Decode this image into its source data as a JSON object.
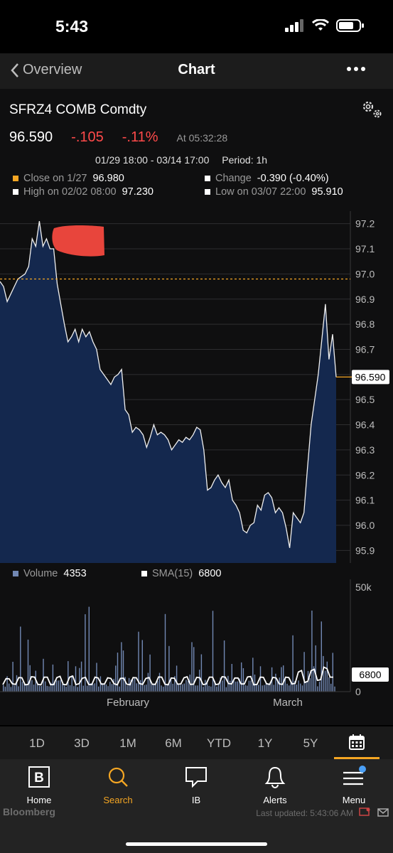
{
  "status_bar": {
    "time": "5:43"
  },
  "nav": {
    "back_label": "Overview",
    "title": "Chart"
  },
  "header": {
    "security": "SFRZ4 COMB Comdty",
    "last": "96.590",
    "change": "-.105",
    "change_pct": "-.11%",
    "as_of": "At 05:32:28",
    "date_range": "01/29 18:00 - 03/14 17:00",
    "period": "Period: 1h"
  },
  "stats": {
    "close_label": "Close on 1/27",
    "close_value": "96.980",
    "change_label": "Change",
    "change_value": "-0.390 (-0.40%)",
    "high_label": "High on 02/02 08:00",
    "high_value": "97.230",
    "low_label": "Low on 03/07 22:00",
    "low_value": "95.910",
    "close_color": "#f5a623"
  },
  "volume_legend": {
    "volume_label": "Volume",
    "volume_value": "4353",
    "sma_label": "SMA(15)",
    "sma_value": "6800"
  },
  "chart_data": [
    {
      "type": "area",
      "y_ticks": [
        "97.2",
        "97.1",
        "97.0",
        "96.9",
        "96.8",
        "96.7",
        "96.6",
        "96.5",
        "96.4",
        "96.3",
        "96.2",
        "96.1",
        "96.0",
        "95.9"
      ],
      "ylim": [
        95.85,
        97.25
      ],
      "reference_line": 96.98,
      "last_label": "96.590",
      "x": [
        0,
        5,
        10,
        15,
        20,
        25,
        30,
        35,
        40,
        45,
        50,
        55,
        60,
        65,
        70,
        75,
        80,
        85,
        90,
        95,
        100,
        105,
        110,
        115,
        120,
        125,
        130,
        135,
        140,
        145,
        150,
        155,
        160,
        165,
        170,
        175,
        180,
        185,
        190,
        195,
        200,
        205,
        210,
        215,
        220,
        225,
        230,
        235,
        240,
        245,
        250,
        255,
        260,
        265,
        270,
        275,
        280,
        285,
        290,
        295,
        300,
        305,
        310,
        315,
        320,
        325,
        330,
        335,
        340,
        345,
        350,
        355,
        360,
        365,
        370,
        375,
        380,
        385,
        390,
        395,
        400,
        405,
        410,
        415,
        420,
        425,
        430,
        435,
        440,
        445,
        450,
        455,
        460,
        465,
        470
      ],
      "values": [
        96.97,
        96.95,
        96.89,
        96.92,
        96.95,
        96.98,
        96.99,
        97.0,
        97.03,
        97.14,
        97.11,
        97.21,
        97.11,
        97.14,
        97.1,
        97.1,
        96.96,
        96.88,
        96.8,
        96.73,
        96.75,
        96.78,
        96.73,
        96.78,
        96.75,
        96.77,
        96.73,
        96.7,
        96.62,
        96.6,
        96.58,
        96.56,
        96.59,
        96.6,
        96.62,
        96.46,
        96.44,
        96.37,
        96.39,
        96.38,
        96.36,
        96.31,
        96.35,
        96.4,
        96.36,
        96.37,
        96.36,
        96.34,
        96.3,
        96.32,
        96.34,
        96.33,
        96.35,
        96.34,
        96.36,
        96.39,
        96.38,
        96.3,
        96.14,
        96.15,
        96.18,
        96.2,
        96.17,
        96.15,
        96.18,
        96.1,
        96.08,
        96.05,
        95.98,
        95.97,
        96.0,
        96.01,
        96.08,
        96.06,
        96.12,
        96.13,
        96.11,
        96.05,
        96.07,
        96.05,
        95.99,
        95.91,
        96.05,
        96.03,
        96.01,
        96.05,
        96.23,
        96.4,
        96.5,
        96.6,
        96.74,
        96.88,
        96.66,
        96.76,
        96.59
      ]
    },
    {
      "type": "bar",
      "y_ticks": [
        "50k",
        "0"
      ],
      "ylim": [
        0,
        50000
      ],
      "x_labels": [
        "February",
        "March"
      ],
      "sma_label": "6800",
      "values": [
        3100,
        2300,
        7200,
        3800,
        2200,
        14000,
        2900,
        7700,
        2500,
        30500,
        4600,
        3700,
        3300,
        24400,
        12400,
        5400,
        3300,
        9800,
        3300,
        2800,
        2700,
        15400,
        4800,
        2700,
        2500,
        4100,
        12700,
        5200,
        5200,
        5200,
        5400,
        3600,
        2900,
        2300,
        14300,
        3000,
        7700,
        2600,
        11900,
        2200,
        11100,
        14100,
        2800,
        36300,
        2800,
        39800,
        4000,
        3500,
        3900,
        13500,
        2400,
        7200,
        4000,
        3300,
        3400,
        2600,
        4600,
        3600,
        6000,
        12200,
        18300,
        2400,
        23200,
        19300,
        6900,
        2900,
        6400,
        5600,
        5600,
        6400,
        3900,
        28100,
        5400,
        24200,
        3100,
        3300,
        8800,
        17400,
        3400,
        3800,
        3300,
        5000,
        8800,
        2900,
        2300,
        36400,
        3300,
        21400,
        6600,
        3700,
        7300,
        12200,
        3400,
        3100,
        3500,
        3800,
        5500,
        5000,
        8000,
        23200,
        20900,
        2900,
        2900,
        10300,
        17500,
        2300,
        5500,
        4400,
        2700,
        2400,
        37900,
        5100,
        2400,
        3500,
        6600,
        5200,
        24000,
        2100,
        7400,
        5100,
        13000,
        5200,
        4700,
        4800,
        6200,
        13700,
        11000,
        3100,
        2800,
        5100,
        5200,
        15900,
        8000,
        3200,
        3200,
        11900,
        2900,
        3100,
        4100,
        3900,
        4400,
        11400,
        3200,
        8400,
        5700,
        6600,
        11500,
        12300,
        6200,
        3700,
        2900,
        4800,
        26400,
        4900,
        3300,
        5200,
        3800,
        2900,
        18600,
        4900,
        9700,
        6300,
        38000,
        11900,
        21700,
        2500,
        4700,
        32900,
        16700,
        9800,
        14100,
        6700,
        3700,
        18200,
        2400
      ],
      "sma": [
        3300,
        6100,
        6000,
        3700,
        3400,
        6600,
        6500,
        3200,
        3400,
        7000,
        6800,
        3400,
        3200,
        6800,
        6800,
        3300,
        3300,
        6600,
        7200,
        3400,
        3200,
        6800,
        7300,
        3300,
        3700,
        6300,
        6700,
        3400,
        3300,
        6800,
        6400,
        3500,
        3600,
        6500,
        6200,
        3700,
        3200,
        6200,
        6300,
        3500,
        3200,
        6600,
        6500,
        3800,
        3400,
        6200,
        6600,
        3500,
        3400,
        6900,
        6800,
        3500,
        3200,
        6400,
        6300,
        3500,
        3600,
        6500,
        7000,
        3400,
        3500,
        6700,
        6500,
        3300,
        3600,
        6800,
        6800,
        3300,
        3600,
        7000,
        6800,
        3800,
        3600,
        6400,
        6400,
        3600,
        3600,
        6900,
        7100,
        3200,
        3400,
        6800,
        6700,
        3700,
        3400,
        6700,
        6400,
        3600,
        3400,
        6800,
        6600,
        3600,
        3900,
        9200,
        9900,
        4300,
        4900,
        9800,
        10500,
        5300,
        5600,
        11500,
        10800,
        6800,
        6800
      ]
    }
  ],
  "timeframes": [
    "1D",
    "3D",
    "1M",
    "6M",
    "YTD",
    "1Y",
    "5Y"
  ],
  "tabs": {
    "home": "Home",
    "search": "Search",
    "ib": "IB",
    "alerts": "Alerts",
    "menu": "Menu"
  },
  "footer": {
    "brand": "Bloomberg",
    "updated": "Last updated: 5:43:06 AM"
  },
  "colors": {
    "accent": "#f5a623",
    "negative": "#ff4a4a",
    "area_fill": "#14284e",
    "volume_bar": "#7288b3"
  },
  "icons": [
    "signal-icon",
    "wifi-icon",
    "battery-icon",
    "chevron-left-icon",
    "more-icon",
    "gear-icon",
    "calendar-icon",
    "bloomberg-b-icon",
    "search-icon",
    "chat-icon",
    "bell-icon",
    "menu-icon"
  ]
}
